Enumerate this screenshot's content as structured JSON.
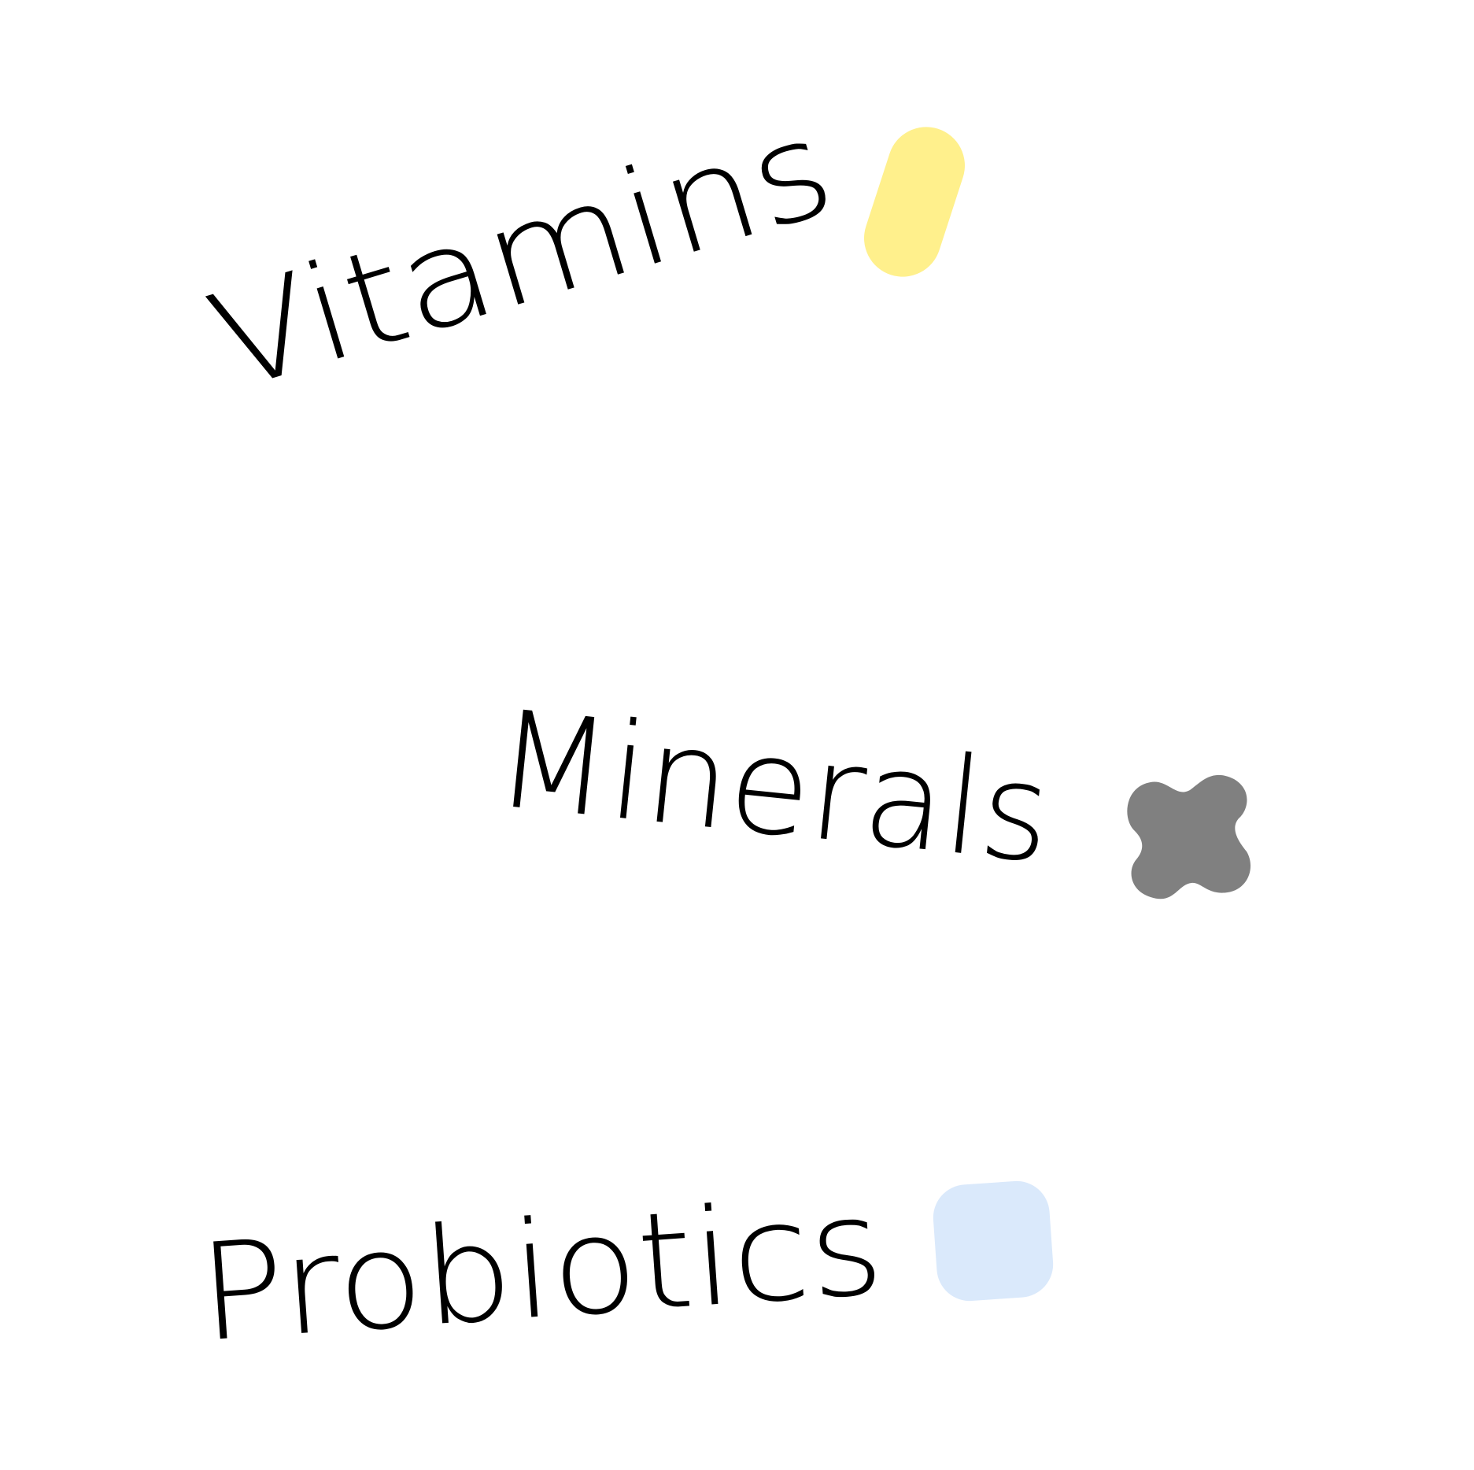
{
  "items": [
    {
      "label": "Vitamins",
      "icon": "pill-icon",
      "icon_color": "#FFF08C"
    },
    {
      "label": "Minerals",
      "icon": "cross-icon",
      "icon_color": "#808080"
    },
    {
      "label": "Probiotics",
      "icon": "rounded-square-icon",
      "icon_color": "#DAE9FB"
    }
  ]
}
